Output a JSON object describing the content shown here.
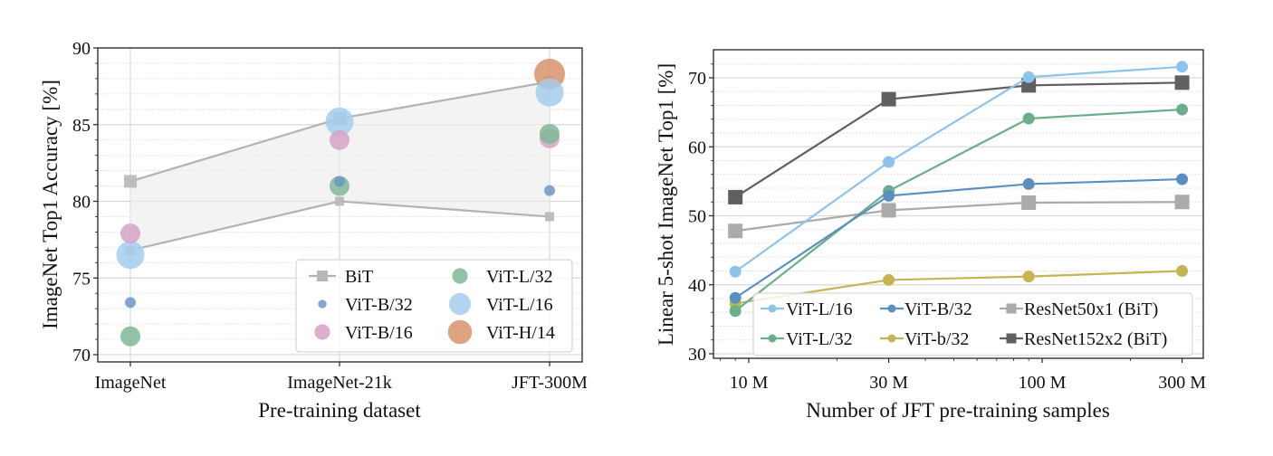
{
  "chart_data": [
    {
      "type": "scatter",
      "title": "",
      "xlabel": "Pre-training dataset",
      "ylabel": "ImageNet Top1 Accuracy [%]",
      "categories": [
        "ImageNet",
        "ImageNet-21k",
        "JFT-300M"
      ],
      "ylim": [
        69.5,
        90
      ],
      "yticks": [
        70,
        75,
        80,
        85,
        90
      ],
      "grid": true,
      "legend_position": "bottom-right",
      "bit_band": {
        "name": "BiT",
        "color": "#b3b3b3",
        "upper": [
          81.3,
          85.4,
          87.8
        ],
        "lower": [
          76.8,
          80.0,
          79.0
        ]
      },
      "series": [
        {
          "name": "ViT-B/32",
          "color": "#6b97c6",
          "size": "small",
          "values": [
            73.4,
            81.3,
            80.7
          ]
        },
        {
          "name": "ViT-B/16",
          "color": "#d3a2c6",
          "size": "medium",
          "values": [
            77.9,
            84.0,
            84.1
          ]
        },
        {
          "name": "ViT-L/32",
          "color": "#7fb898",
          "size": "medium",
          "values": [
            71.2,
            81.0,
            84.4
          ]
        },
        {
          "name": "ViT-L/16",
          "color": "#a3cdee",
          "size": "large",
          "values": [
            76.5,
            85.2,
            87.1
          ]
        },
        {
          "name": "ViT-H/14",
          "color": "#d8936a",
          "size": "xlarge",
          "values": [
            null,
            null,
            88.3
          ]
        }
      ],
      "legend": [
        {
          "label": "BiT",
          "kind": "line-square"
        },
        {
          "label": "ViT-B/32",
          "kind": "dot"
        },
        {
          "label": "ViT-B/16",
          "kind": "dot"
        },
        {
          "label": "ViT-L/32",
          "kind": "dot"
        },
        {
          "label": "ViT-L/16",
          "kind": "dot"
        },
        {
          "label": "ViT-H/14",
          "kind": "dot"
        }
      ]
    },
    {
      "type": "line",
      "title": "",
      "xlabel": "Number of JFT pre-training samples",
      "ylabel": "Linear 5-shot ImageNet Top1 [%]",
      "xscale": "log",
      "x": [
        9000000,
        30000000,
        90000000,
        300000000
      ],
      "xticks": [
        10000000,
        30000000,
        100000000,
        300000000
      ],
      "xtick_labels": [
        "10 M",
        "30 M",
        "100 M",
        "300 M"
      ],
      "xlim": [
        7000000,
        350000000
      ],
      "ylim": [
        28.8,
        74
      ],
      "yticks": [
        30,
        40,
        50,
        60,
        70
      ],
      "grid": true,
      "legend_position": "bottom-right",
      "series": [
        {
          "name": "ViT-L/16",
          "color": "#8cc4ec",
          "marker": "circle",
          "values": [
            41.9,
            57.8,
            70.1,
            71.6
          ]
        },
        {
          "name": "ViT-L/32",
          "color": "#6aaf8a",
          "marker": "circle",
          "values": [
            36.2,
            53.6,
            64.1,
            65.4
          ]
        },
        {
          "name": "ViT-B/32",
          "color": "#5b8fc0",
          "marker": "circle",
          "values": [
            38.1,
            52.9,
            54.6,
            55.3
          ]
        },
        {
          "name": "ViT-b/32",
          "color": "#c4b452",
          "marker": "circle",
          "values": [
            37.3,
            40.7,
            41.2,
            42.0
          ]
        },
        {
          "name": "ResNet50x1 (BiT)",
          "color": "#aaaaaa",
          "marker": "square",
          "values": [
            47.8,
            50.8,
            51.9,
            52.0
          ]
        },
        {
          "name": "ResNet152x2 (BiT)",
          "color": "#606060",
          "marker": "square",
          "values": [
            52.7,
            66.9,
            68.9,
            69.3
          ]
        }
      ],
      "legend_order": [
        "ViT-L/16",
        "ViT-B/32",
        "ResNet50x1 (BiT)",
        "ViT-L/32",
        "ViT-b/32",
        "ResNet152x2 (BiT)"
      ]
    }
  ]
}
